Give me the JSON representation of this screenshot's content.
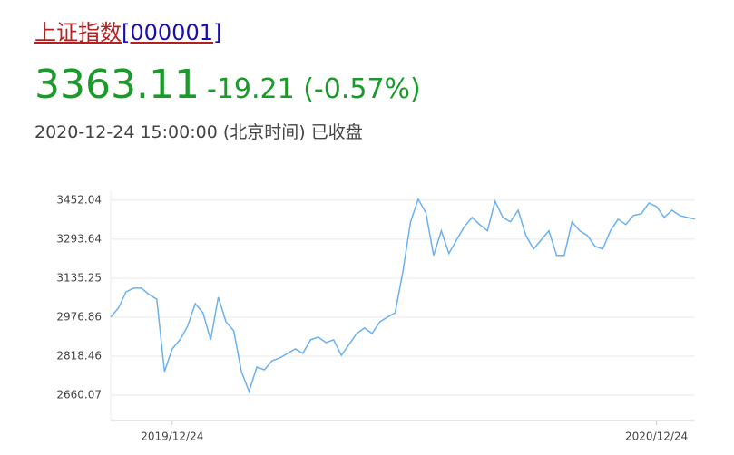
{
  "header": {
    "name": "上证指数",
    "code": "[000001]",
    "price": "3363.11",
    "change": "-19.21 (-0.57%)",
    "time": "2020-12-24 15:00:00 (北京时间) 已收盘"
  },
  "chart_data": {
    "type": "line",
    "color": "#6ab0f3",
    "grid": true,
    "ylim": [
      2557,
      3529
    ],
    "yticks": [
      2660.07,
      2818.46,
      2976.86,
      3135.25,
      3293.64,
      3452.04
    ],
    "categories": [
      null,
      null,
      null,
      null,
      null,
      null,
      null,
      null,
      "2019/12/24",
      null,
      null,
      null,
      null,
      null,
      null,
      null,
      null,
      null,
      null,
      null,
      null,
      null,
      null,
      null,
      null,
      null,
      null,
      null,
      null,
      null,
      null,
      null,
      null,
      null,
      null,
      null,
      null,
      null,
      null,
      null,
      null,
      null,
      null,
      null,
      null,
      null,
      null,
      null,
      null,
      null,
      null,
      null,
      null,
      null,
      null,
      null,
      null,
      null,
      null,
      null,
      null,
      null,
      null,
      null,
      null,
      null,
      null,
      null,
      null,
      null,
      null,
      "2020/12/24",
      null,
      null,
      null,
      null,
      null
    ],
    "values": [
      2977,
      3014,
      3080,
      3095,
      3095,
      3069,
      3050,
      2756,
      2848,
      2885,
      2940,
      3032,
      2995,
      2885,
      3058,
      2958,
      2922,
      2756,
      2675,
      2774,
      2763,
      2800,
      2811,
      2830,
      2848,
      2830,
      2885,
      2896,
      2874,
      2885,
      2822,
      2866,
      2911,
      2933,
      2911,
      2958,
      2977,
      2995,
      3161,
      3364,
      3456,
      3401,
      3228,
      3328,
      3236,
      3291,
      3345,
      3382,
      3353,
      3328,
      3448,
      3382,
      3364,
      3411,
      3309,
      3254,
      3291,
      3328,
      3228,
      3228,
      3364,
      3328,
      3309,
      3265,
      3254,
      3328,
      3375,
      3353,
      3390,
      3397,
      3441,
      3426,
      3382,
      3411,
      3390,
      3382,
      3375
    ]
  }
}
